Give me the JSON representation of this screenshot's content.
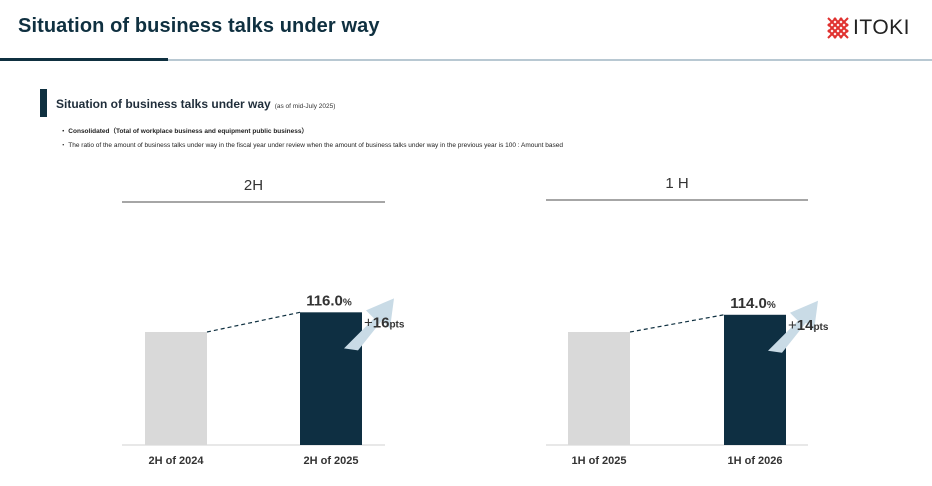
{
  "header": {
    "title": "Situation of business talks under way",
    "logo_text": "ITOKI"
  },
  "section": {
    "title": "Situation of business talks under way",
    "note": "(as of mid-July 2025)"
  },
  "notes": [
    "・ Consolidated（Total of workplace business and equipment public business）",
    "・ The ratio of the amount of business talks under way in the fiscal year under review when the amount of business talks under way in the previous year is 100 : Amount based"
  ],
  "colors": {
    "navy": "#0f3040",
    "bar_previous": "#d9d9d9",
    "bar_current": "#0e2f42",
    "arrow": "#c9dbe6"
  },
  "chart_data": [
    {
      "type": "bar",
      "period_label": "2H",
      "categories": [
        "2H of 2024",
        "2H of 2025"
      ],
      "values": [
        100,
        116.0
      ],
      "value_labels": [
        "",
        "116.0"
      ],
      "value_unit": "%",
      "change_prefix": "+",
      "change_value": "16",
      "change_unit": "pts"
    },
    {
      "type": "bar",
      "period_label": "1 H",
      "categories": [
        "1H of 2025",
        "1H of 2026"
      ],
      "values": [
        100,
        114.0
      ],
      "value_labels": [
        "",
        "114.0"
      ],
      "value_unit": "%",
      "change_prefix": "+",
      "change_value": "14",
      "change_unit": "pts"
    }
  ]
}
